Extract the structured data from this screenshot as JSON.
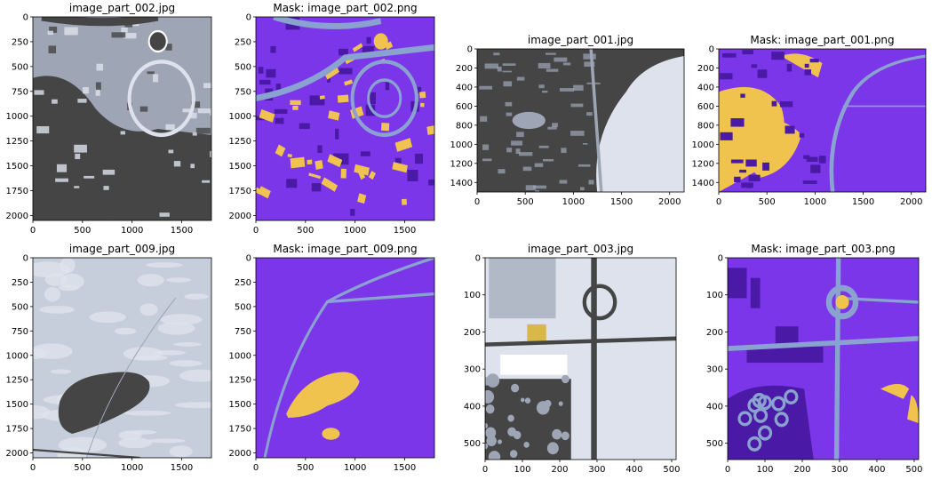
{
  "colors": {
    "mask_bg": "#7a36e8",
    "mask_road": "#8aa2d0",
    "mask_build": "#4a1aa6",
    "mask_veg": "#f0c24e",
    "photo_dark": "#454546",
    "photo_light": "#dde2ec",
    "photo_mid": "#9ea6b6",
    "photo_sand": "#c7cedb"
  },
  "chart_data": [
    {
      "type": "image",
      "title": "image_part_002.jpg",
      "xlim": [
        0,
        1800
      ],
      "ylim": [
        2050,
        0
      ],
      "xticks": [
        0,
        500,
        1000,
        1500
      ],
      "yticks": [
        0,
        250,
        500,
        750,
        1000,
        1250,
        1500,
        1750,
        2000
      ]
    },
    {
      "type": "image",
      "title": "Mask: image_part_002.png",
      "xlim": [
        0,
        1800
      ],
      "ylim": [
        2050,
        0
      ],
      "xticks": [
        0,
        500,
        1000,
        1500
      ],
      "yticks": [
        0,
        250,
        500,
        750,
        1000,
        1250,
        1500,
        1750,
        2000
      ]
    },
    {
      "type": "image",
      "title": "image_part_001.jpg",
      "xlim": [
        0,
        2150
      ],
      "ylim": [
        1500,
        0
      ],
      "xticks": [
        0,
        500,
        1000,
        1500,
        2000
      ],
      "yticks": [
        0,
        200,
        400,
        600,
        800,
        1000,
        1200,
        1400
      ]
    },
    {
      "type": "image",
      "title": "Mask: image_part_001.png",
      "xlim": [
        0,
        2150
      ],
      "ylim": [
        1500,
        0
      ],
      "xticks": [
        0,
        500,
        1000,
        1500,
        2000
      ],
      "yticks": [
        0,
        200,
        400,
        600,
        800,
        1000,
        1200,
        1400
      ]
    },
    {
      "type": "image",
      "title": "image_part_009.jpg",
      "xlim": [
        0,
        1800
      ],
      "ylim": [
        2050,
        0
      ],
      "xticks": [
        0,
        500,
        1000,
        1500
      ],
      "yticks": [
        0,
        250,
        500,
        750,
        1000,
        1250,
        1500,
        1750,
        2000
      ]
    },
    {
      "type": "image",
      "title": "Mask: image_part_009.png",
      "xlim": [
        0,
        1800
      ],
      "ylim": [
        2050,
        0
      ],
      "xticks": [
        0,
        500,
        1000,
        1500
      ],
      "yticks": [
        0,
        250,
        500,
        750,
        1000,
        1250,
        1500,
        1750,
        2000
      ]
    },
    {
      "type": "image",
      "title": "image_part_003.jpg",
      "xlim": [
        0,
        512
      ],
      "ylim": [
        544,
        0
      ],
      "xticks": [
        0,
        100,
        200,
        300,
        400,
        500
      ],
      "yticks": [
        0,
        100,
        200,
        300,
        400,
        500
      ]
    },
    {
      "type": "image",
      "title": "Mask: image_part_003.png",
      "xlim": [
        0,
        512
      ],
      "ylim": [
        544,
        0
      ],
      "xticks": [
        0,
        100,
        200,
        300,
        400,
        500
      ],
      "yticks": [
        0,
        100,
        200,
        300,
        400,
        500
      ]
    }
  ]
}
